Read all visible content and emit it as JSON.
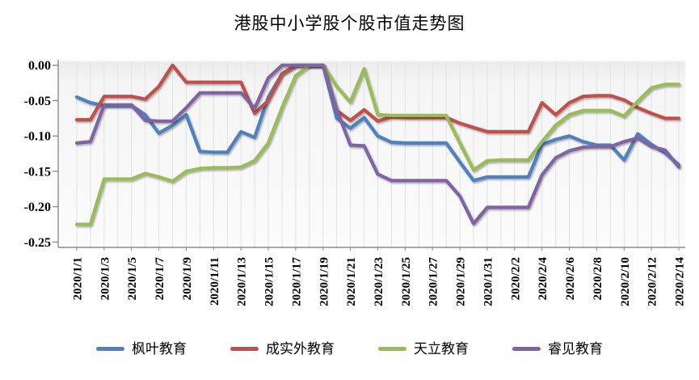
{
  "chart_data": {
    "type": "line",
    "title": "港股中小学股个股市值走势图",
    "xlabel": "",
    "ylabel": "",
    "ylim": [
      -0.25,
      0.0
    ],
    "y_ticks": [
      "0.00",
      "-0.05",
      "-0.10",
      "-0.15",
      "-0.20",
      "-0.25"
    ],
    "y_tick_values": [
      0,
      -0.05,
      -0.1,
      -0.15,
      -0.2,
      -0.25
    ],
    "grid": "vertical-daily",
    "legend_position": "bottom",
    "x_label_every": 2,
    "x_labels_shown": [
      "2020/1/1",
      "2020/1/3",
      "2020/1/5",
      "2020/1/7",
      "2020/1/9",
      "2020/1/11",
      "2020/1/13",
      "2020/1/15",
      "2020/1/17",
      "2020/1/19",
      "2020/1/21",
      "2020/1/23",
      "2020/1/25",
      "2020/1/27",
      "2020/1/29",
      "2020/1/31",
      "2020/2/2",
      "2020/2/4",
      "2020/2/6",
      "2020/2/8",
      "2020/2/10",
      "2020/2/12",
      "2020/2/14"
    ],
    "x": [
      "2020/1/1",
      "2020/1/2",
      "2020/1/3",
      "2020/1/4",
      "2020/1/5",
      "2020/1/6",
      "2020/1/7",
      "2020/1/8",
      "2020/1/9",
      "2020/1/10",
      "2020/1/11",
      "2020/1/12",
      "2020/1/13",
      "2020/1/14",
      "2020/1/15",
      "2020/1/16",
      "2020/1/17",
      "2020/1/18",
      "2020/1/19",
      "2020/1/20",
      "2020/1/21",
      "2020/1/22",
      "2020/1/23",
      "2020/1/24",
      "2020/1/25",
      "2020/1/26",
      "2020/1/27",
      "2020/1/28",
      "2020/1/29",
      "2020/1/30",
      "2020/1/31",
      "2020/2/1",
      "2020/2/2",
      "2020/2/3",
      "2020/2/4",
      "2020/2/5",
      "2020/2/6",
      "2020/2/7",
      "2020/2/8",
      "2020/2/9",
      "2020/2/10",
      "2020/2/11",
      "2020/2/12",
      "2020/2/13",
      "2020/2/14"
    ],
    "series": [
      {
        "name": "枫叶教育",
        "color": "#4F81BD",
        "values": [
          -0.045,
          -0.053,
          -0.057,
          -0.057,
          -0.057,
          -0.07,
          -0.096,
          -0.085,
          -0.07,
          -0.122,
          -0.123,
          -0.123,
          -0.094,
          -0.102,
          -0.045,
          -0.012,
          0,
          0,
          0,
          -0.075,
          -0.089,
          -0.074,
          -0.1,
          -0.109,
          -0.11,
          -0.11,
          -0.11,
          -0.11,
          -0.137,
          -0.163,
          -0.158,
          -0.158,
          -0.158,
          -0.158,
          -0.112,
          -0.105,
          -0.1,
          -0.108,
          -0.113,
          -0.113,
          -0.134,
          -0.097,
          -0.112,
          -0.124,
          -0.141
        ]
      },
      {
        "name": "成实外教育",
        "color": "#C0504D",
        "values": [
          -0.077,
          -0.077,
          -0.044,
          -0.044,
          -0.044,
          -0.048,
          -0.03,
          0,
          -0.024,
          -0.024,
          -0.024,
          -0.024,
          -0.024,
          -0.068,
          -0.05,
          -0.012,
          0,
          0,
          0,
          -0.064,
          -0.078,
          -0.063,
          -0.079,
          -0.073,
          -0.074,
          -0.074,
          -0.074,
          -0.074,
          -0.082,
          -0.088,
          -0.094,
          -0.094,
          -0.094,
          -0.094,
          -0.053,
          -0.07,
          -0.053,
          -0.044,
          -0.043,
          -0.043,
          -0.049,
          -0.06,
          -0.068,
          -0.075,
          -0.075
        ]
      },
      {
        "name": "天立教育",
        "color": "#9BBB59",
        "values": [
          -0.225,
          -0.225,
          -0.161,
          -0.161,
          -0.161,
          -0.153,
          -0.158,
          -0.164,
          -0.15,
          -0.146,
          -0.145,
          -0.145,
          -0.144,
          -0.135,
          -0.11,
          -0.06,
          -0.015,
          0,
          0,
          -0.03,
          -0.052,
          -0.005,
          -0.07,
          -0.071,
          -0.071,
          -0.071,
          -0.071,
          -0.071,
          -0.11,
          -0.148,
          -0.135,
          -0.134,
          -0.134,
          -0.134,
          -0.108,
          -0.085,
          -0.07,
          -0.064,
          -0.064,
          -0.064,
          -0.072,
          -0.051,
          -0.032,
          -0.027,
          -0.027
        ]
      },
      {
        "name": "睿见教育",
        "color": "#8064A2",
        "values": [
          -0.11,
          -0.108,
          -0.056,
          -0.056,
          -0.056,
          -0.078,
          -0.079,
          -0.079,
          -0.06,
          -0.039,
          -0.039,
          -0.039,
          -0.039,
          -0.061,
          -0.018,
          0,
          0,
          0,
          0,
          -0.063,
          -0.113,
          -0.114,
          -0.154,
          -0.163,
          -0.163,
          -0.163,
          -0.163,
          -0.163,
          -0.185,
          -0.224,
          -0.201,
          -0.201,
          -0.201,
          -0.201,
          -0.155,
          -0.131,
          -0.121,
          -0.116,
          -0.115,
          -0.115,
          -0.108,
          -0.103,
          -0.115,
          -0.12,
          -0.144
        ]
      }
    ],
    "colors": {
      "plot_bg_top": "#EBEBEB",
      "plot_bg_bottom": "#FBFBFB",
      "grid_color": "#E2E2E2",
      "axis_color": "#8C8C8C",
      "text_color": "#000000",
      "background": "#FFFFFF"
    }
  }
}
